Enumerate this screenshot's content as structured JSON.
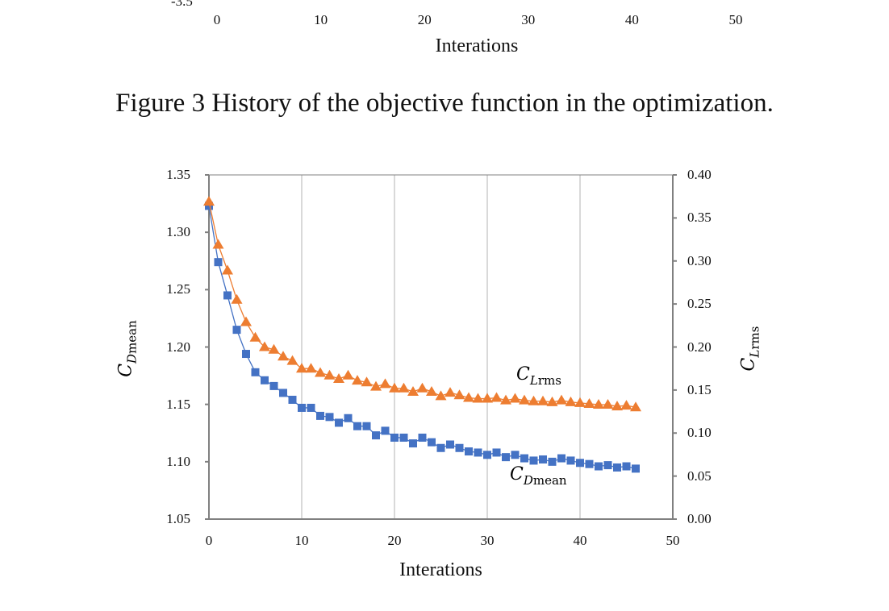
{
  "top_figure_fragment": {
    "cut_tick_label": "-3.5",
    "x_ticks": [
      "0",
      "10",
      "20",
      "30",
      "40",
      "50"
    ],
    "xlabel": "Interations"
  },
  "caption": "Figure 3  History of the objective function in the optimization.",
  "chart_data": {
    "type": "line",
    "xlabel": "Interations",
    "ylabel_left": {
      "base": "C",
      "sub": "D",
      "subtext": "mean"
    },
    "ylabel_right": {
      "base": "C",
      "sub": "L",
      "subtext": "rms"
    },
    "xlim": [
      0,
      50
    ],
    "ylim_left": [
      1.05,
      1.35
    ],
    "ylim_right": [
      0.0,
      0.4
    ],
    "x_ticks": [
      "0",
      "10",
      "20",
      "30",
      "40",
      "50"
    ],
    "y_ticks_left": [
      "1.35",
      "1.30",
      "1.25",
      "1.20",
      "1.15",
      "1.10",
      "1.05"
    ],
    "y_ticks_right": [
      "0.40",
      "0.35",
      "0.30",
      "0.25",
      "0.20",
      "0.15",
      "0.10",
      "0.05",
      "0.00"
    ],
    "grid": "vertical",
    "series": [
      {
        "axis": "left",
        "marker": "square",
        "color": "#4472C4",
        "label": {
          "base": "C",
          "sub": "D",
          "subtext": "mean"
        },
        "x": [
          0,
          1,
          2,
          3,
          4,
          5,
          6,
          7,
          8,
          9,
          10,
          11,
          12,
          13,
          14,
          15,
          16,
          17,
          18,
          19,
          20,
          21,
          22,
          23,
          24,
          25,
          26,
          27,
          28,
          29,
          30,
          31,
          32,
          33,
          34,
          35,
          36,
          37,
          38,
          39,
          40,
          41,
          42,
          43,
          44,
          45,
          46
        ],
        "values": [
          1.323,
          1.274,
          1.245,
          1.215,
          1.194,
          1.178,
          1.171,
          1.166,
          1.16,
          1.154,
          1.147,
          1.147,
          1.14,
          1.139,
          1.134,
          1.138,
          1.131,
          1.131,
          1.123,
          1.127,
          1.121,
          1.121,
          1.116,
          1.121,
          1.117,
          1.112,
          1.115,
          1.112,
          1.109,
          1.108,
          1.106,
          1.108,
          1.104,
          1.106,
          1.103,
          1.101,
          1.102,
          1.1,
          1.103,
          1.101,
          1.099,
          1.098,
          1.096,
          1.097,
          1.095,
          1.096,
          1.094
        ]
      },
      {
        "axis": "right",
        "marker": "triangle",
        "color": "#ED7D31",
        "label": {
          "base": "C",
          "sub": "L",
          "subtext": "rms"
        },
        "x": [
          0,
          1,
          2,
          3,
          4,
          5,
          6,
          7,
          8,
          9,
          10,
          11,
          12,
          13,
          14,
          15,
          16,
          17,
          18,
          19,
          20,
          21,
          22,
          23,
          24,
          25,
          26,
          27,
          28,
          29,
          30,
          31,
          32,
          33,
          34,
          35,
          36,
          37,
          38,
          39,
          40,
          41,
          42,
          43,
          44,
          45,
          46
        ],
        "values": [
          0.369,
          0.319,
          0.289,
          0.255,
          0.229,
          0.211,
          0.2,
          0.197,
          0.189,
          0.184,
          0.175,
          0.175,
          0.17,
          0.167,
          0.163,
          0.167,
          0.161,
          0.159,
          0.154,
          0.157,
          0.152,
          0.152,
          0.148,
          0.152,
          0.148,
          0.143,
          0.147,
          0.144,
          0.141,
          0.14,
          0.14,
          0.141,
          0.138,
          0.14,
          0.138,
          0.137,
          0.137,
          0.136,
          0.138,
          0.136,
          0.135,
          0.134,
          0.133,
          0.133,
          0.131,
          0.132,
          0.13
        ]
      }
    ]
  }
}
